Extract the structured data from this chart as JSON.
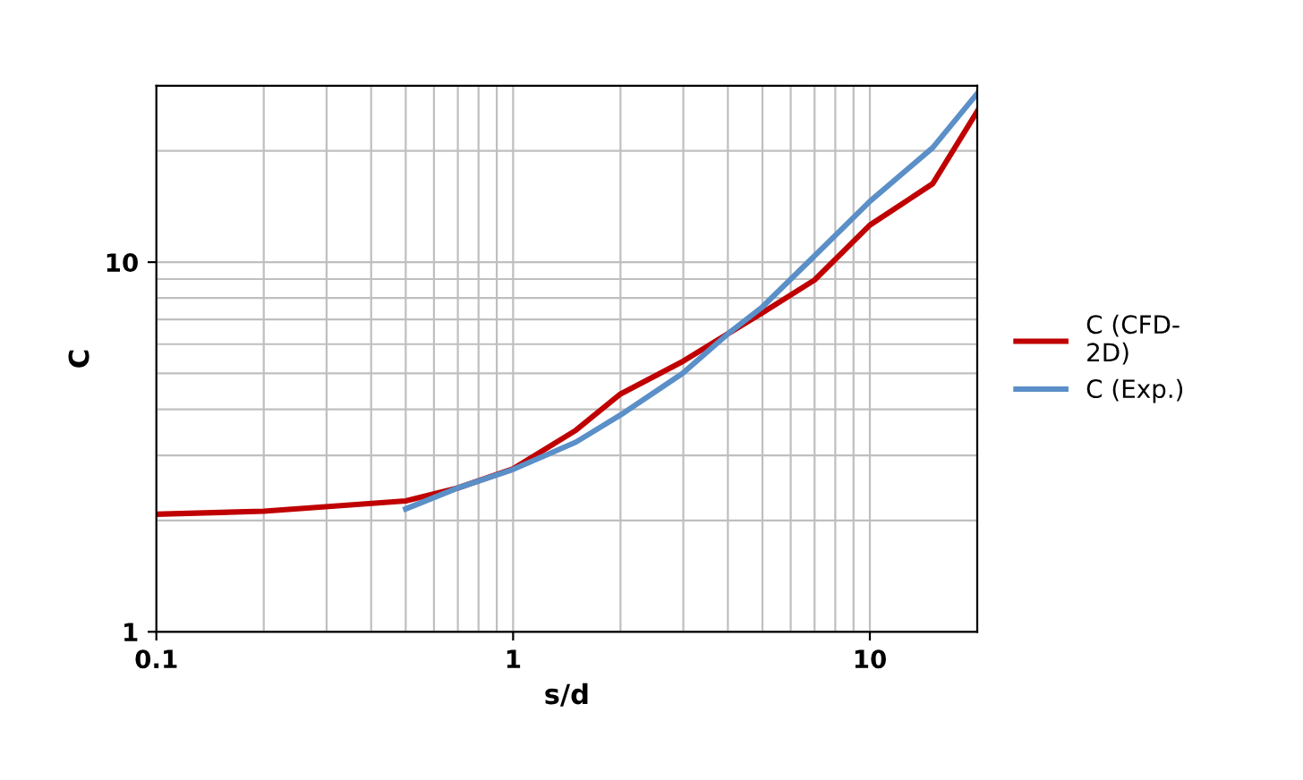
{
  "chart_data": {
    "type": "line",
    "xlabel": "s/d",
    "ylabel": "C",
    "log": "xy",
    "grid": true,
    "legend": "right",
    "line_style": "solid",
    "marker": "none",
    "xlim": [
      0.1,
      20
    ],
    "ylim": [
      1,
      30
    ],
    "xticks": [
      0.1,
      1,
      10
    ],
    "yticks": [
      1,
      10
    ],
    "series": [
      {
        "name": "C (CFD-\n2D)",
        "color": "#c00000",
        "x": [
          0.1,
          0.2,
          0.5,
          0.7,
          1,
          1.5,
          2,
          3,
          4,
          5,
          7,
          10,
          15,
          20
        ],
        "values": [
          2.08,
          2.12,
          2.26,
          2.45,
          2.76,
          3.51,
          4.4,
          5.4,
          6.4,
          7.3,
          8.95,
          12.6,
          16.3,
          25.6
        ]
      },
      {
        "name": "C (Exp.)",
        "color": "#5b8fc7",
        "x": [
          0.5,
          0.7,
          1,
          1.5,
          2,
          3,
          4,
          5,
          7,
          10,
          15,
          20
        ],
        "values": [
          2.15,
          2.45,
          2.75,
          3.26,
          3.86,
          5.02,
          6.4,
          7.57,
          10.4,
          14.6,
          20.4,
          28.6
        ]
      }
    ]
  }
}
